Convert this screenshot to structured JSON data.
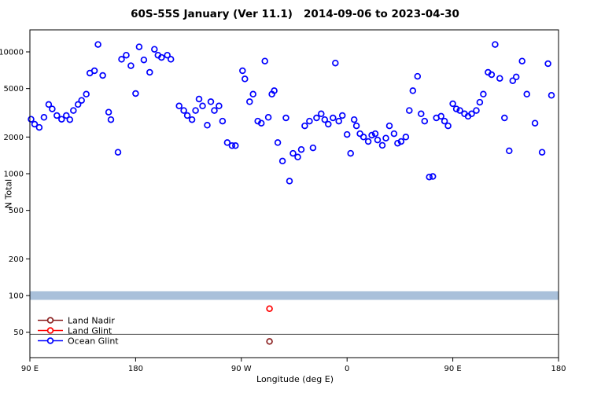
{
  "chart_data": {
    "type": "scatter",
    "title": "60S-55S January (Ver 11.1)   2014-09-06 to 2023-04-30",
    "xlabel": "Longitude (deg E)",
    "ylabel": "N Total",
    "x_axis": {
      "note": "longitude axis wraps eastward starting at 90E; internal coordinate runs 90..540",
      "range": [
        90,
        540
      ],
      "ticks": [
        {
          "value": 90,
          "label": "90 E"
        },
        {
          "value": 180,
          "label": "180"
        },
        {
          "value": 270,
          "label": "90 W"
        },
        {
          "value": 360,
          "label": "0"
        },
        {
          "value": 450,
          "label": "90 E"
        },
        {
          "value": 540,
          "label": "180"
        }
      ]
    },
    "y_axis": {
      "scale": "log",
      "ticks": [
        50,
        100,
        200,
        500,
        1000,
        2000,
        5000,
        10000
      ],
      "range": [
        31,
        15000
      ]
    },
    "annotations": {
      "band": {
        "value": 100,
        "color": "#a9c0da"
      },
      "hline": {
        "value": 48,
        "color": "#555555"
      }
    },
    "legend": {
      "position": "bottom-left",
      "entries": [
        {
          "label": "Land Nadir",
          "color": "#8B2222"
        },
        {
          "label": "Land Glint",
          "color": "#FF0000"
        },
        {
          "label": "Ocean Glint",
          "color": "#0000FF"
        }
      ]
    },
    "series": [
      {
        "name": "Land Nadir",
        "color": "#8B2222",
        "points": [
          [
            294,
            42
          ]
        ]
      },
      {
        "name": "Land Glint",
        "color": "#FF0000",
        "points": [
          [
            294,
            78
          ]
        ]
      },
      {
        "name": "Ocean Glint",
        "color": "#0000FF",
        "points": [
          [
            91,
            2800
          ],
          [
            94,
            2550
          ],
          [
            98,
            2400
          ],
          [
            102,
            2900
          ],
          [
            106,
            3700
          ],
          [
            109,
            3400
          ],
          [
            113,
            3000
          ],
          [
            117,
            2800
          ],
          [
            121,
            3000
          ],
          [
            124,
            2780
          ],
          [
            127,
            3300
          ],
          [
            131,
            3700
          ],
          [
            134,
            4000
          ],
          [
            138,
            4500
          ],
          [
            141,
            6700
          ],
          [
            145,
            7000
          ],
          [
            148,
            11500
          ],
          [
            152,
            6400
          ],
          [
            157,
            3200
          ],
          [
            159,
            2780
          ],
          [
            165,
            1500
          ],
          [
            168,
            8700
          ],
          [
            172,
            9400
          ],
          [
            176,
            7700
          ],
          [
            180,
            4550
          ],
          [
            183,
            11000
          ],
          [
            187,
            8600
          ],
          [
            192,
            6800
          ],
          [
            196,
            10500
          ],
          [
            199,
            9400
          ],
          [
            202,
            9000
          ],
          [
            207,
            9400
          ],
          [
            210,
            8700
          ],
          [
            217,
            3600
          ],
          [
            221,
            3300
          ],
          [
            224,
            3000
          ],
          [
            228,
            2780
          ],
          [
            231,
            3300
          ],
          [
            234,
            4100
          ],
          [
            237,
            3600
          ],
          [
            241,
            2500
          ],
          [
            244,
            3900
          ],
          [
            247,
            3300
          ],
          [
            251,
            3600
          ],
          [
            254,
            2700
          ],
          [
            258,
            1800
          ],
          [
            262,
            1700
          ],
          [
            265,
            1700
          ],
          [
            271,
            7000
          ],
          [
            273,
            6000
          ],
          [
            277,
            3900
          ],
          [
            280,
            4500
          ],
          [
            284,
            2700
          ],
          [
            287,
            2600
          ],
          [
            290,
            8400
          ],
          [
            293,
            2900
          ],
          [
            296,
            4500
          ],
          [
            298,
            4800
          ],
          [
            301,
            1800
          ],
          [
            305,
            1270
          ],
          [
            308,
            2870
          ],
          [
            311,
            870
          ],
          [
            314,
            1470
          ],
          [
            318,
            1370
          ],
          [
            321,
            1580
          ],
          [
            324,
            2470
          ],
          [
            328,
            2700
          ],
          [
            331,
            1630
          ],
          [
            334,
            2870
          ],
          [
            338,
            3100
          ],
          [
            341,
            2780
          ],
          [
            344,
            2550
          ],
          [
            348,
            2870
          ],
          [
            350,
            8100
          ],
          [
            353,
            2700
          ],
          [
            356,
            3000
          ],
          [
            360,
            2100
          ],
          [
            363,
            1470
          ],
          [
            366,
            2780
          ],
          [
            368,
            2470
          ],
          [
            371,
            2130
          ],
          [
            374,
            2000
          ],
          [
            378,
            1840
          ],
          [
            381,
            2070
          ],
          [
            384,
            2130
          ],
          [
            386,
            1890
          ],
          [
            390,
            1710
          ],
          [
            393,
            1960
          ],
          [
            396,
            2470
          ],
          [
            400,
            2130
          ],
          [
            403,
            1780
          ],
          [
            406,
            1840
          ],
          [
            410,
            2000
          ],
          [
            413,
            3300
          ],
          [
            416,
            4800
          ],
          [
            420,
            6300
          ],
          [
            423,
            3100
          ],
          [
            426,
            2700
          ],
          [
            430,
            940
          ],
          [
            433,
            950
          ],
          [
            436,
            2870
          ],
          [
            440,
            2960
          ],
          [
            443,
            2700
          ],
          [
            446,
            2470
          ],
          [
            450,
            3750
          ],
          [
            453,
            3400
          ],
          [
            456,
            3300
          ],
          [
            460,
            3100
          ],
          [
            463,
            2960
          ],
          [
            466,
            3100
          ],
          [
            470,
            3300
          ],
          [
            473,
            3860
          ],
          [
            476,
            4500
          ],
          [
            480,
            6800
          ],
          [
            483,
            6500
          ],
          [
            486,
            11500
          ],
          [
            490,
            6060
          ],
          [
            494,
            2870
          ],
          [
            498,
            1540
          ],
          [
            501,
            5800
          ],
          [
            504,
            6230
          ],
          [
            509,
            8400
          ],
          [
            513,
            4500
          ],
          [
            520,
            2600
          ],
          [
            526,
            1500
          ],
          [
            531,
            8000
          ],
          [
            534,
            4400
          ]
        ]
      }
    ]
  }
}
